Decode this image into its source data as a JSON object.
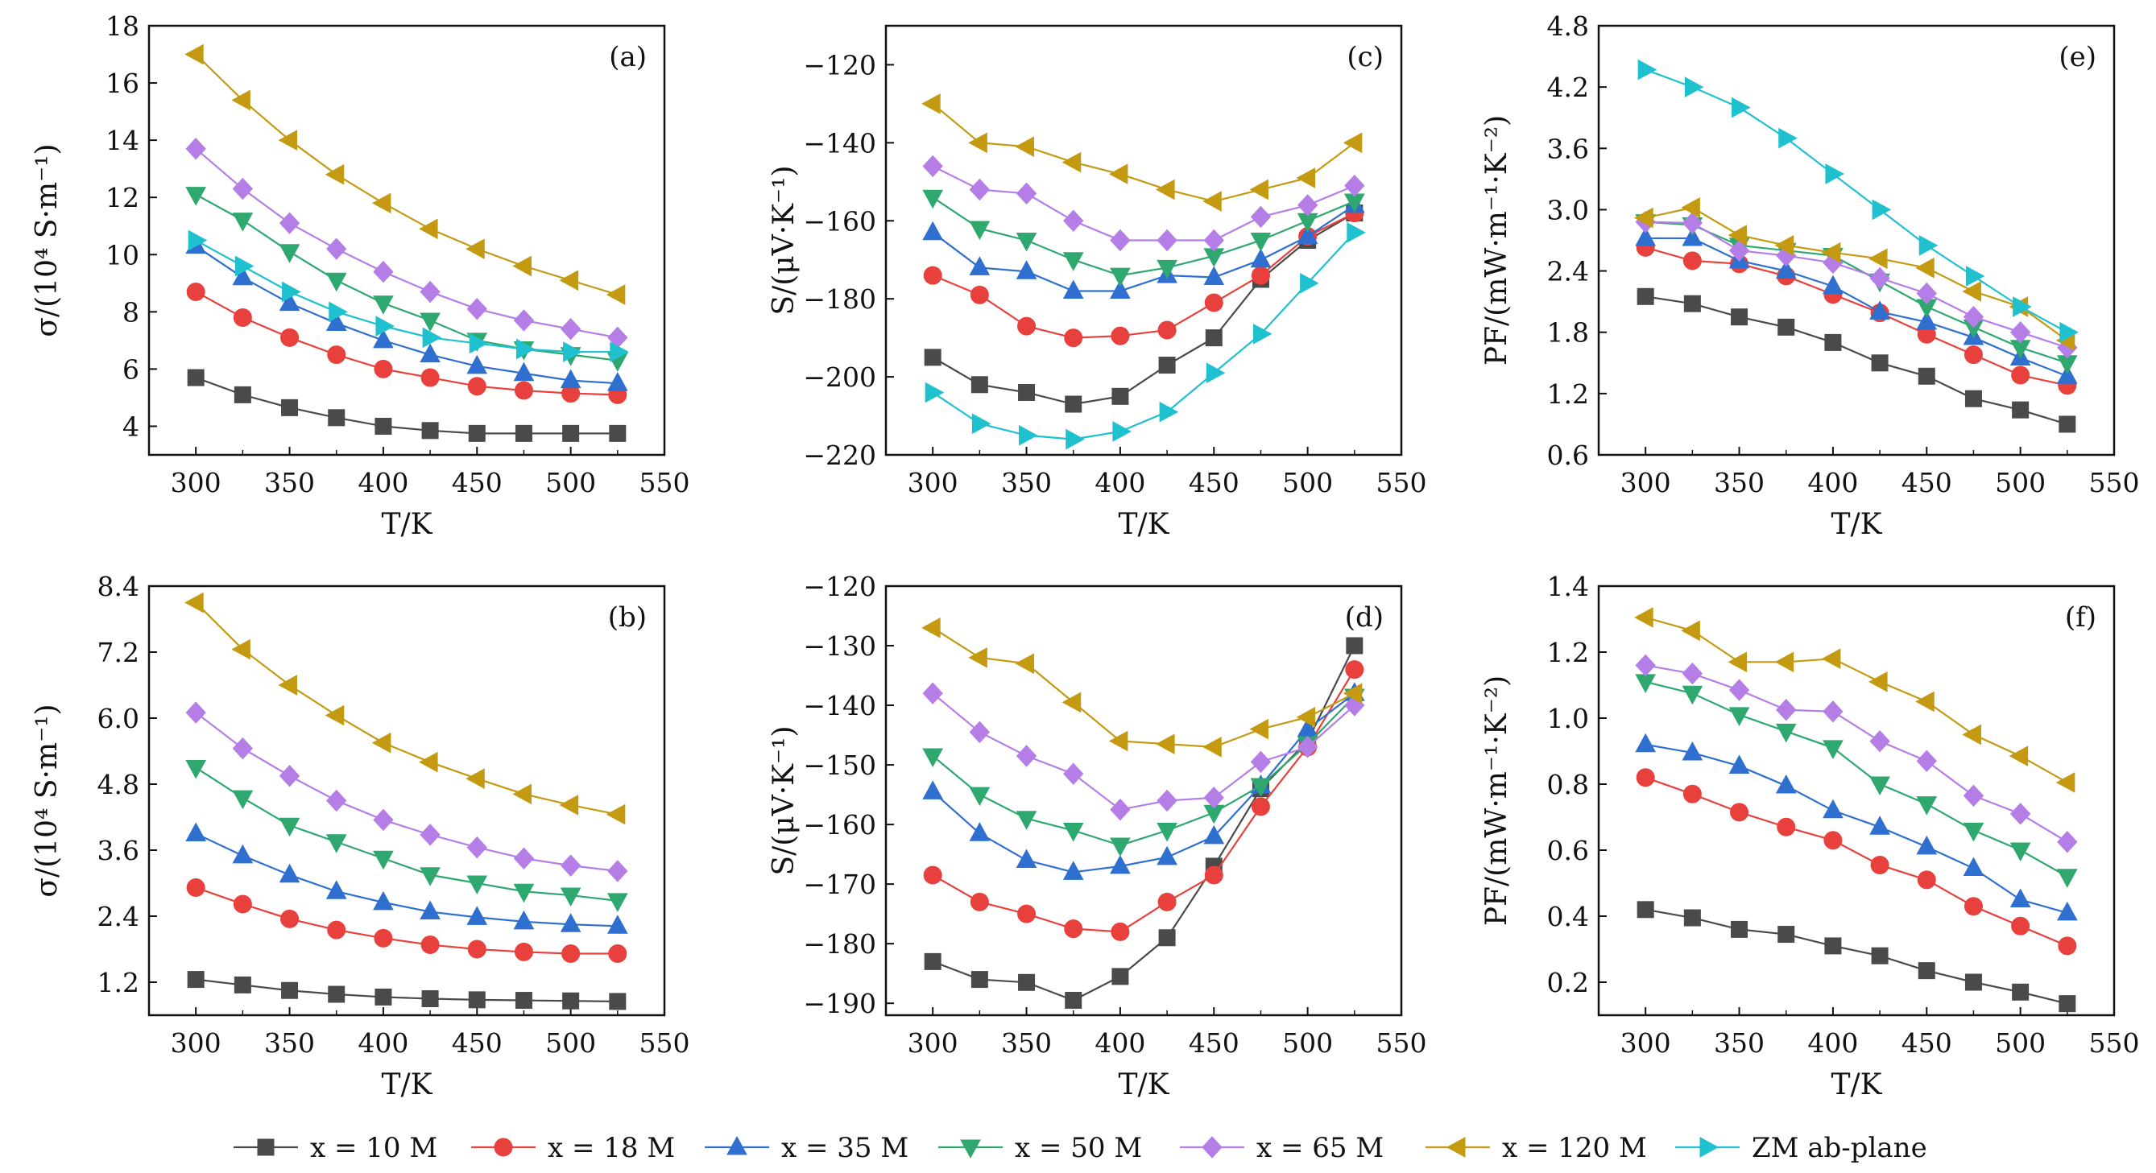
{
  "series_styles": [
    {
      "key": "x10",
      "label": "x = 10 M",
      "color": "#4a4a4a",
      "marker": "square"
    },
    {
      "key": "x18",
      "label": "x = 18 M",
      "color": "#e8413d",
      "marker": "circle"
    },
    {
      "key": "x35",
      "label": "x = 35 M",
      "color": "#2f6fd0",
      "marker": "triangle-up"
    },
    {
      "key": "x50",
      "label": "x = 50 M",
      "color": "#2ea86e",
      "marker": "triangle-down"
    },
    {
      "key": "x65",
      "label": "x = 65 M",
      "color": "#b57ee6",
      "marker": "diamond"
    },
    {
      "key": "x120",
      "label": "x = 120 M",
      "color": "#c49a12",
      "marker": "triangle-left"
    },
    {
      "key": "zm",
      "label": "ZM ab-plane",
      "color": "#1fc1cf",
      "marker": "triangle-right"
    }
  ],
  "chart_data": [
    {
      "type": "line",
      "panel_label": "(a)",
      "xlabel": "T/K",
      "ylabel": "σ/(10⁴ S·m⁻¹)",
      "xlim": [
        275,
        550
      ],
      "ylim": [
        3,
        18
      ],
      "xticks": [
        300,
        350,
        400,
        450,
        500,
        550
      ],
      "yticks": [
        4,
        6,
        8,
        10,
        12,
        14,
        16,
        18
      ],
      "ytick_labels": [
        "4",
        "6",
        "8",
        "10",
        "12",
        "14",
        "16",
        "18"
      ],
      "x": [
        300,
        325,
        350,
        375,
        400,
        425,
        450,
        475,
        500,
        525
      ],
      "series": [
        {
          "key": "x10",
          "values": [
            5.7,
            5.1,
            4.65,
            4.3,
            4.0,
            3.85,
            3.75,
            3.75,
            3.75,
            3.75
          ]
        },
        {
          "key": "x18",
          "values": [
            8.7,
            7.8,
            7.1,
            6.5,
            6.0,
            5.7,
            5.4,
            5.25,
            5.15,
            5.1
          ]
        },
        {
          "key": "x35",
          "values": [
            10.3,
            9.2,
            8.3,
            7.6,
            7.0,
            6.5,
            6.1,
            5.85,
            5.6,
            5.5
          ]
        },
        {
          "key": "x50",
          "values": [
            12.1,
            11.2,
            10.1,
            9.1,
            8.3,
            7.7,
            7.0,
            6.7,
            6.5,
            6.3
          ]
        },
        {
          "key": "x65",
          "values": [
            13.7,
            12.3,
            11.1,
            10.2,
            9.4,
            8.7,
            8.1,
            7.7,
            7.4,
            7.1
          ]
        },
        {
          "key": "x120",
          "values": [
            17.0,
            15.4,
            14.0,
            12.8,
            11.8,
            10.9,
            10.2,
            9.6,
            9.1,
            8.6
          ]
        },
        {
          "key": "zm",
          "values": [
            10.5,
            9.6,
            8.7,
            8.0,
            7.5,
            7.1,
            6.9,
            6.7,
            6.6,
            6.6
          ]
        }
      ]
    },
    {
      "type": "line",
      "panel_label": "(c)",
      "xlabel": "T/K",
      "ylabel": "S/(μV·K⁻¹)",
      "xlim": [
        275,
        550
      ],
      "ylim": [
        -220,
        -110
      ],
      "xticks": [
        300,
        350,
        400,
        450,
        500,
        550
      ],
      "yticks": [
        -220,
        -200,
        -180,
        -160,
        -140,
        -120
      ],
      "ytick_labels": [
        "−220",
        "−200",
        "−180",
        "−160",
        "−140",
        "−120"
      ],
      "x": [
        300,
        325,
        350,
        375,
        400,
        425,
        450,
        475,
        500,
        525
      ],
      "series": [
        {
          "key": "x10",
          "values": [
            -195,
            -202,
            -204,
            -207,
            -205,
            -197,
            -190,
            -175,
            -165,
            -158
          ]
        },
        {
          "key": "x18",
          "values": [
            -174,
            -179,
            -187,
            -190,
            -189.5,
            -188,
            -181,
            -174,
            -164,
            -158
          ]
        },
        {
          "key": "x35",
          "values": [
            -163,
            -172,
            -173,
            -178,
            -178,
            -174,
            -174.5,
            -170,
            -164,
            -156
          ]
        },
        {
          "key": "x50",
          "values": [
            -154,
            -162,
            -165,
            -170,
            -174,
            -172,
            -169,
            -165,
            -160,
            -155
          ]
        },
        {
          "key": "x65",
          "values": [
            -146,
            -152,
            -153,
            -160,
            -165,
            -165,
            -165,
            -159,
            -156,
            -151
          ]
        },
        {
          "key": "x120",
          "values": [
            -130,
            -140,
            -141,
            -145,
            -148,
            -152,
            -155,
            -152,
            -149,
            -140
          ]
        },
        {
          "key": "zm",
          "values": [
            -204,
            -212,
            -215,
            -216,
            -214,
            -209,
            -199,
            -189,
            -176,
            -163
          ]
        }
      ]
    },
    {
      "type": "line",
      "panel_label": "(e)",
      "xlabel": "T/K",
      "ylabel": "PF/(mW·m⁻¹·K⁻²)",
      "xlim": [
        275,
        550
      ],
      "ylim": [
        0.6,
        4.8
      ],
      "xticks": [
        300,
        350,
        400,
        450,
        500,
        550
      ],
      "yticks": [
        0.6,
        1.2,
        1.8,
        2.4,
        3.0,
        3.6,
        4.2,
        4.8
      ],
      "ytick_labels": [
        "0.6",
        "1.2",
        "1.8",
        "2.4",
        "3.0",
        "3.6",
        "4.2",
        "4.8"
      ],
      "x": [
        300,
        325,
        350,
        375,
        400,
        425,
        450,
        475,
        500,
        525
      ],
      "series": [
        {
          "key": "x10",
          "values": [
            2.15,
            2.08,
            1.95,
            1.85,
            1.7,
            1.5,
            1.37,
            1.15,
            1.04,
            0.9
          ]
        },
        {
          "key": "x18",
          "values": [
            2.63,
            2.5,
            2.47,
            2.35,
            2.17,
            1.99,
            1.78,
            1.58,
            1.38,
            1.28
          ]
        },
        {
          "key": "x35",
          "values": [
            2.72,
            2.72,
            2.5,
            2.4,
            2.25,
            2.0,
            1.9,
            1.75,
            1.55,
            1.37
          ]
        },
        {
          "key": "x50",
          "values": [
            2.88,
            2.85,
            2.65,
            2.6,
            2.55,
            2.3,
            2.05,
            1.85,
            1.65,
            1.5
          ]
        },
        {
          "key": "x65",
          "values": [
            2.88,
            2.87,
            2.6,
            2.55,
            2.48,
            2.33,
            2.18,
            1.95,
            1.8,
            1.65
          ]
        },
        {
          "key": "x120",
          "values": [
            2.92,
            3.02,
            2.75,
            2.65,
            2.58,
            2.52,
            2.43,
            2.2,
            2.05,
            1.72
          ]
        },
        {
          "key": "zm",
          "values": [
            4.37,
            4.2,
            4.0,
            3.7,
            3.35,
            3.0,
            2.65,
            2.35,
            2.05,
            1.8
          ]
        }
      ]
    },
    {
      "type": "line",
      "panel_label": "(b)",
      "xlabel": "T/K",
      "ylabel": "σ/(10⁴ S·m⁻¹)",
      "xlim": [
        275,
        550
      ],
      "ylim": [
        0.6,
        8.4
      ],
      "xticks": [
        300,
        350,
        400,
        450,
        500,
        550
      ],
      "yticks": [
        1.2,
        2.4,
        3.6,
        4.8,
        6.0,
        7.2,
        8.4
      ],
      "ytick_labels": [
        "1.2",
        "2.4",
        "3.6",
        "4.8",
        "6.0",
        "7.2",
        "8.4"
      ],
      "x": [
        300,
        325,
        350,
        375,
        400,
        425,
        450,
        475,
        500,
        525
      ],
      "series": [
        {
          "key": "x10",
          "values": [
            1.25,
            1.15,
            1.05,
            0.98,
            0.93,
            0.9,
            0.88,
            0.87,
            0.86,
            0.85
          ]
        },
        {
          "key": "x18",
          "values": [
            2.92,
            2.62,
            2.35,
            2.15,
            2.0,
            1.88,
            1.8,
            1.75,
            1.72,
            1.72
          ]
        },
        {
          "key": "x35",
          "values": [
            3.9,
            3.5,
            3.15,
            2.85,
            2.65,
            2.48,
            2.38,
            2.3,
            2.25,
            2.22
          ]
        },
        {
          "key": "x50",
          "values": [
            5.1,
            4.55,
            4.05,
            3.75,
            3.45,
            3.15,
            3.0,
            2.85,
            2.78,
            2.68
          ]
        },
        {
          "key": "x65",
          "values": [
            6.1,
            5.45,
            4.95,
            4.5,
            4.15,
            3.88,
            3.65,
            3.45,
            3.32,
            3.22
          ]
        },
        {
          "key": "x120",
          "values": [
            8.1,
            7.25,
            6.6,
            6.05,
            5.55,
            5.2,
            4.9,
            4.62,
            4.42,
            4.25
          ]
        }
      ]
    },
    {
      "type": "line",
      "panel_label": "(d)",
      "xlabel": "T/K",
      "ylabel": "S/(μV·K⁻¹)",
      "xlim": [
        275,
        550
      ],
      "ylim": [
        -192,
        -120
      ],
      "xticks": [
        300,
        350,
        400,
        450,
        500,
        550
      ],
      "yticks": [
        -190,
        -180,
        -170,
        -160,
        -150,
        -140,
        -130,
        -120
      ],
      "ytick_labels": [
        "−190",
        "−180",
        "−170",
        "−160",
        "−150",
        "−140",
        "−130",
        "−120"
      ],
      "x": [
        300,
        325,
        350,
        375,
        400,
        425,
        450,
        475,
        500,
        525
      ],
      "series": [
        {
          "key": "x10",
          "values": [
            -183,
            -186,
            -186.5,
            -189.5,
            -185.5,
            -179,
            -167,
            -154,
            -146,
            -130
          ]
        },
        {
          "key": "x18",
          "values": [
            -168.5,
            -173,
            -175,
            -177.5,
            -178,
            -173,
            -168.5,
            -157,
            -147,
            -134
          ]
        },
        {
          "key": "x35",
          "values": [
            -154.5,
            -161.5,
            -166,
            -168,
            -167,
            -165.5,
            -162,
            -153.5,
            -144,
            -138
          ]
        },
        {
          "key": "x50",
          "values": [
            -148.5,
            -155,
            -159,
            -161,
            -163.5,
            -161,
            -158,
            -153.5,
            -146.5,
            -138.5
          ]
        },
        {
          "key": "x65",
          "values": [
            -138,
            -144.5,
            -148.5,
            -151.5,
            -157.5,
            -156,
            -155.5,
            -149.5,
            -147,
            -140
          ]
        },
        {
          "key": "x120",
          "values": [
            -127,
            -132,
            -133,
            -139.5,
            -146,
            -146.5,
            -147,
            -144,
            -142,
            -138
          ]
        }
      ]
    },
    {
      "type": "line",
      "panel_label": "(f)",
      "xlabel": "T/K",
      "ylabel": "PF/(mW·m⁻¹·K⁻²)",
      "xlim": [
        275,
        550
      ],
      "ylim": [
        0.1,
        1.4
      ],
      "xticks": [
        300,
        350,
        400,
        450,
        500,
        550
      ],
      "yticks": [
        0.2,
        0.4,
        0.6,
        0.8,
        1.0,
        1.2,
        1.4
      ],
      "ytick_labels": [
        "0.2",
        "0.4",
        "0.6",
        "0.8",
        "1.0",
        "1.2",
        "1.4"
      ],
      "x": [
        300,
        325,
        350,
        375,
        400,
        425,
        450,
        475,
        500,
        525
      ],
      "series": [
        {
          "key": "x10",
          "values": [
            0.42,
            0.395,
            0.36,
            0.345,
            0.31,
            0.28,
            0.235,
            0.2,
            0.17,
            0.135
          ]
        },
        {
          "key": "x18",
          "values": [
            0.82,
            0.77,
            0.715,
            0.67,
            0.63,
            0.555,
            0.51,
            0.43,
            0.37,
            0.31
          ]
        },
        {
          "key": "x35",
          "values": [
            0.92,
            0.895,
            0.855,
            0.795,
            0.72,
            0.67,
            0.61,
            0.545,
            0.45,
            0.41
          ]
        },
        {
          "key": "x50",
          "values": [
            1.11,
            1.075,
            1.01,
            0.96,
            0.91,
            0.8,
            0.74,
            0.66,
            0.6,
            0.52
          ]
        },
        {
          "key": "x65",
          "values": [
            1.16,
            1.135,
            1.085,
            1.025,
            1.02,
            0.93,
            0.87,
            0.765,
            0.71,
            0.625
          ]
        },
        {
          "key": "x120",
          "values": [
            1.305,
            1.265,
            1.17,
            1.17,
            1.18,
            1.11,
            1.05,
            0.95,
            0.885,
            0.805
          ]
        }
      ]
    }
  ]
}
